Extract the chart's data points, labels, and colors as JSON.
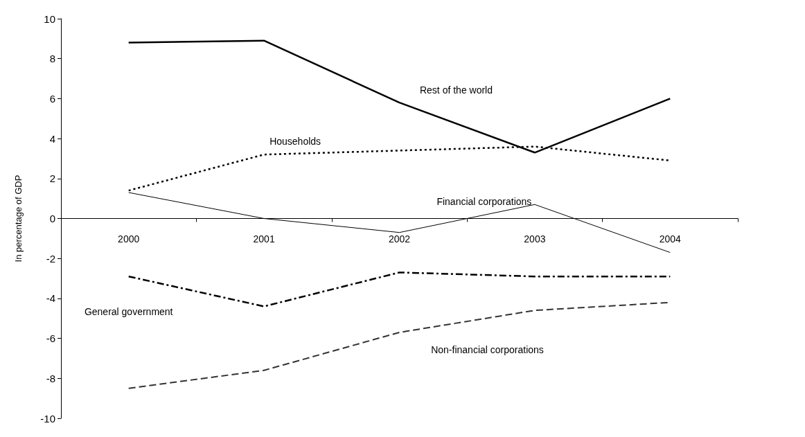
{
  "chart_data": {
    "type": "line",
    "ylabel": "In percentage of GDP",
    "categories": [
      "2000",
      "2001",
      "2002",
      "2003",
      "2004"
    ],
    "series": [
      {
        "name": "Rest of the world",
        "color": "#000000",
        "line_style": "solid",
        "values": [
          8.8,
          8.9,
          5.8,
          3.3,
          6.0
        ]
      },
      {
        "name": "Households",
        "color": "#000000",
        "line_style": "dotted",
        "values": [
          1.4,
          3.2,
          3.4,
          3.6,
          2.9
        ]
      },
      {
        "name": "Financial corporations",
        "color": "#000000",
        "line_style": "solid",
        "values": [
          1.3,
          0,
          -0.7,
          0.7,
          -1.7
        ]
      },
      {
        "name": "General government",
        "color": "#000000",
        "line_style": "dashdot",
        "values": [
          -2.9,
          -4.4,
          -2.7,
          -2.9,
          -2.9
        ]
      },
      {
        "name": "Non-financial corporations",
        "color": "#333333",
        "line_style": "dashed",
        "values": [
          -8.5,
          -7.6,
          -5.7,
          -4.6,
          -4.2
        ]
      }
    ],
    "ylim": [
      -10,
      10
    ],
    "yticks": [
      -10,
      -8,
      -6,
      -4,
      -2,
      0,
      2,
      4,
      6,
      8,
      10
    ],
    "grid": false,
    "legend": false,
    "marker": "none"
  }
}
